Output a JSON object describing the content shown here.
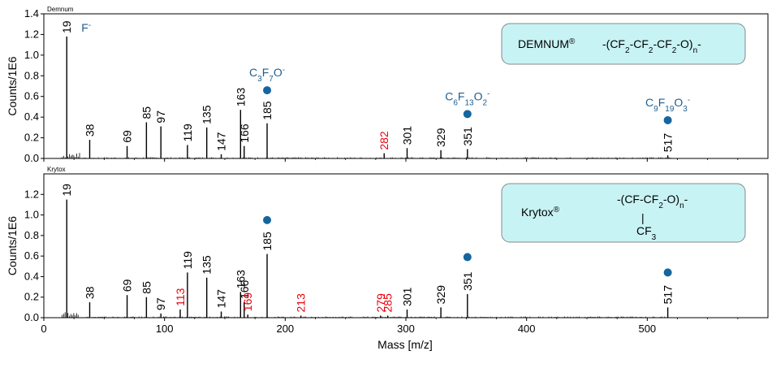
{
  "chart_data": [
    {
      "type": "bar",
      "title": "Demnum",
      "ylabel": "Counts/1E6",
      "xlim": [
        0,
        600
      ],
      "ylim": [
        0,
        1.4
      ],
      "yticks": [
        0.0,
        0.2,
        0.4,
        0.6,
        0.8,
        1.0,
        1.2,
        1.4
      ],
      "peaks": [
        {
          "mz": 19,
          "y": 1.18,
          "label": "19",
          "color": "#000000"
        },
        {
          "mz": 38,
          "y": 0.18,
          "label": "38",
          "color": "#000000"
        },
        {
          "mz": 69,
          "y": 0.12,
          "label": "69",
          "color": "#000000"
        },
        {
          "mz": 85,
          "y": 0.35,
          "label": "85",
          "color": "#000000"
        },
        {
          "mz": 97,
          "y": 0.31,
          "label": "97",
          "color": "#000000"
        },
        {
          "mz": 119,
          "y": 0.13,
          "label": "119",
          "color": "#000000"
        },
        {
          "mz": 135,
          "y": 0.3,
          "label": "135",
          "color": "#000000"
        },
        {
          "mz": 147,
          "y": 0.04,
          "label": "147",
          "color": "#000000"
        },
        {
          "mz": 163,
          "y": 0.47,
          "label": "163",
          "color": "#000000"
        },
        {
          "mz": 166,
          "y": 0.12,
          "label": "166",
          "color": "#000000"
        },
        {
          "mz": 185,
          "y": 0.34,
          "label": "185",
          "color": "#000000"
        },
        {
          "mz": 282,
          "y": 0.05,
          "label": "282",
          "color": "#e8000b"
        },
        {
          "mz": 301,
          "y": 0.1,
          "label": "301",
          "color": "#000000"
        },
        {
          "mz": 329,
          "y": 0.08,
          "label": "329",
          "color": "#000000"
        },
        {
          "mz": 351,
          "y": 0.09,
          "label": "351",
          "color": "#000000"
        },
        {
          "mz": 517,
          "y": 0.03,
          "label": "517",
          "color": "#000000"
        }
      ],
      "markers": [
        {
          "mz": 185,
          "y": 0.66,
          "ion": [
            "C",
            "3",
            "F",
            "7",
            "O",
            "-"
          ]
        },
        {
          "mz": 351,
          "y": 0.43,
          "ion": [
            "C",
            "6",
            "F",
            "13",
            "O",
            "2",
            "-"
          ]
        },
        {
          "mz": 517,
          "y": 0.37,
          "ion": [
            "C",
            "9",
            "F",
            "19",
            "O",
            "3",
            "-"
          ]
        }
      ],
      "fluoride_label": "F",
      "fluoride_charge": "-",
      "legend_box": {
        "name": "DEMNUM",
        "reg": "®",
        "formula": [
          "-(CF",
          "2",
          "-CF",
          "2",
          "-CF",
          "2",
          "-O)",
          "n",
          "-"
        ]
      }
    },
    {
      "type": "bar",
      "title": "Krytox",
      "ylabel": "Counts/1E6",
      "xlabel": "Mass [m/z]",
      "xlim": [
        0,
        600
      ],
      "ylim": [
        0,
        1.4
      ],
      "yticks": [
        0.0,
        0.2,
        0.4,
        0.6,
        0.8,
        1.0,
        1.2
      ],
      "xticks": [
        0,
        100,
        200,
        300,
        400,
        500
      ],
      "peaks": [
        {
          "mz": 19,
          "y": 1.15,
          "label": "19",
          "color": "#000000"
        },
        {
          "mz": 38,
          "y": 0.15,
          "label": "38",
          "color": "#000000"
        },
        {
          "mz": 69,
          "y": 0.22,
          "label": "69",
          "color": "#000000"
        },
        {
          "mz": 85,
          "y": 0.2,
          "label": "85",
          "color": "#000000"
        },
        {
          "mz": 97,
          "y": 0.04,
          "label": "97",
          "color": "#000000"
        },
        {
          "mz": 113,
          "y": 0.08,
          "label": "113",
          "color": "#e8000b"
        },
        {
          "mz": 119,
          "y": 0.44,
          "label": "119",
          "color": "#000000"
        },
        {
          "mz": 135,
          "y": 0.39,
          "label": "135",
          "color": "#000000"
        },
        {
          "mz": 147,
          "y": 0.06,
          "label": "147",
          "color": "#000000"
        },
        {
          "mz": 163,
          "y": 0.25,
          "label": "163",
          "color": "#000000"
        },
        {
          "mz": 166,
          "y": 0.15,
          "label": "166",
          "color": "#000000"
        },
        {
          "mz": 169,
          "y": 0.03,
          "label": "169",
          "color": "#e8000b"
        },
        {
          "mz": 185,
          "y": 0.62,
          "label": "185",
          "color": "#000000"
        },
        {
          "mz": 213,
          "y": 0.02,
          "label": "213",
          "color": "#e8000b"
        },
        {
          "mz": 279,
          "y": 0.02,
          "label": "279",
          "color": "#e8000b"
        },
        {
          "mz": 285,
          "y": 0.02,
          "label": "285",
          "color": "#e8000b"
        },
        {
          "mz": 301,
          "y": 0.08,
          "label": "301",
          "color": "#000000"
        },
        {
          "mz": 329,
          "y": 0.1,
          "label": "329",
          "color": "#000000"
        },
        {
          "mz": 351,
          "y": 0.23,
          "label": "351",
          "color": "#000000"
        },
        {
          "mz": 517,
          "y": 0.1,
          "label": "517",
          "color": "#000000"
        }
      ],
      "markers": [
        {
          "mz": 185,
          "y": 0.95
        },
        {
          "mz": 351,
          "y": 0.59
        },
        {
          "mz": 517,
          "y": 0.44
        }
      ],
      "legend_box": {
        "name": "Krytox",
        "reg": "®",
        "formula": [
          "-(CF-CF",
          "2",
          "-O)",
          "n",
          "-"
        ],
        "branch_bar": "|",
        "branch": [
          "CF",
          "3"
        ]
      }
    }
  ],
  "colors": {
    "marker": "#1565a0",
    "ion_text": "#1f5f8f",
    "red_label": "#e8000b",
    "box_fill": "#c8f3f5",
    "box_stroke": "#888888"
  }
}
